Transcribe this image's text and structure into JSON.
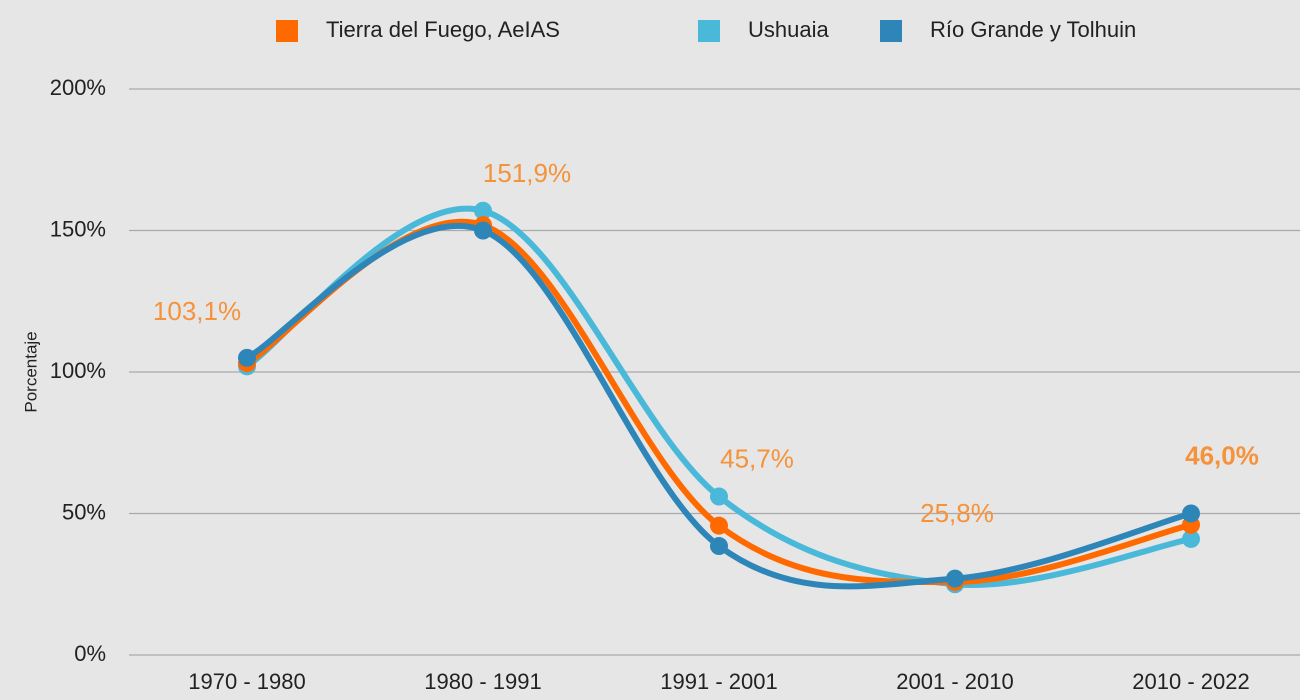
{
  "chart_data": {
    "type": "line",
    "categories": [
      "1970 - 1980",
      "1980 - 1991",
      "1991 - 2001",
      "2001 - 2010",
      "2010 - 2022"
    ],
    "series": [
      {
        "name": "Tierra del Fuego, AeIAS",
        "color": "#ff6a00",
        "values": [
          103.1,
          151.9,
          45.7,
          25.8,
          46.0
        ],
        "value_labels": [
          "103,1%",
          "151,9%",
          "45,7%",
          "25,8%",
          "46,0%"
        ]
      },
      {
        "name": "Ushuaia",
        "color": "#4ab9d9",
        "values": [
          102,
          157,
          56,
          25,
          41
        ]
      },
      {
        "name": "Río Grande y Tolhuin",
        "color": "#2e86b8",
        "values": [
          105,
          150,
          38.5,
          27,
          50
        ]
      }
    ],
    "ylabel": "Porcentaje",
    "ylim": [
      0,
      200
    ],
    "yticks": [
      {
        "value": 0,
        "label": "0%"
      },
      {
        "value": 50,
        "label": "50%"
      },
      {
        "value": 100,
        "label": "100%"
      },
      {
        "value": 150,
        "label": "150%"
      },
      {
        "value": 200,
        "label": "200%"
      }
    ],
    "grid": true,
    "legend": "top",
    "value_label_color": "#f5923a"
  }
}
